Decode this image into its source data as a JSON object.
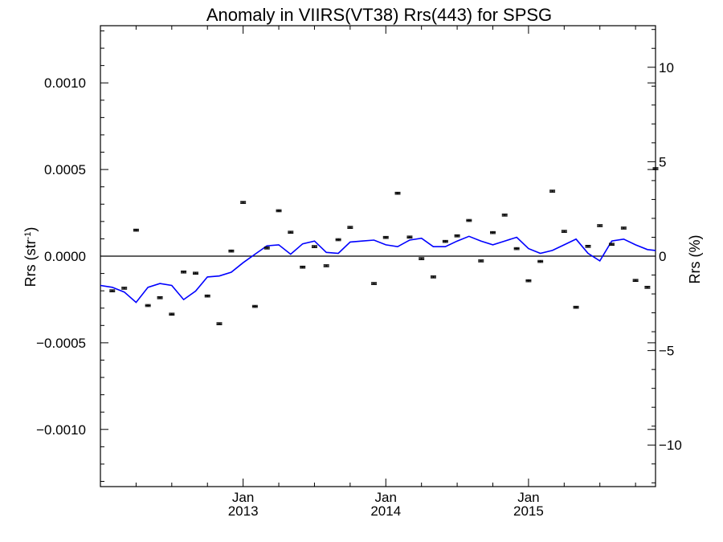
{
  "chart_data": {
    "type": "line",
    "title": "Anomaly in VIIRS(VT38) Rrs(443) for SPSG",
    "ylabel_left": {
      "base": "Rrs (str",
      "sup": "-1",
      "tail": ")"
    },
    "ylabel_right": "Rrs (%)",
    "ylim_left": [
      -0.00133,
      0.00133
    ],
    "ylim_right": [
      -12.2,
      12.2
    ],
    "x_range": [
      2012.0,
      2015.89
    ],
    "left_ticks": [
      {
        "value": 0.001,
        "label": "0.0010"
      },
      {
        "value": 0.0005,
        "label": "0.0005"
      },
      {
        "value": 0.0,
        "label": "0.0000"
      },
      {
        "value": -0.0005,
        "label": "−0.0005"
      },
      {
        "value": -0.001,
        "label": "−0.0010"
      }
    ],
    "right_ticks": [
      {
        "value": 10,
        "label": "10"
      },
      {
        "value": 5,
        "label": "5"
      },
      {
        "value": 0,
        "label": "0"
      },
      {
        "value": -5,
        "label": "−5"
      },
      {
        "value": -10,
        "label": "−10"
      }
    ],
    "x_ticks": [
      {
        "value": 2013.0,
        "month": "Jan",
        "year": "2013"
      },
      {
        "value": 2014.0,
        "month": "Jan",
        "year": "2014"
      },
      {
        "value": 2015.0,
        "month": "Jan",
        "year": "2015"
      }
    ],
    "zero_line": 0,
    "series": [
      {
        "kind": "line",
        "axis": "right",
        "color": "#0000ff",
        "x": [
          2012.0,
          2012.083,
          2012.167,
          2012.25,
          2012.333,
          2012.417,
          2012.5,
          2012.583,
          2012.667,
          2012.75,
          2012.833,
          2012.917,
          2013.0,
          2013.083,
          2013.167,
          2013.25,
          2013.333,
          2013.417,
          2013.5,
          2013.583,
          2013.667,
          2013.75,
          2013.833,
          2013.917,
          2014.0,
          2014.083,
          2014.167,
          2014.25,
          2014.333,
          2014.417,
          2014.5,
          2014.583,
          2014.667,
          2014.75,
          2014.833,
          2014.917,
          2015.0,
          2015.083,
          2015.167,
          2015.25,
          2015.333,
          2015.417,
          2015.5,
          2015.583,
          2015.667,
          2015.75,
          2015.833,
          2015.89
        ],
        "values": [
          -1.55,
          -1.65,
          -1.9,
          -2.45,
          -1.65,
          -1.45,
          -1.55,
          -2.3,
          -1.85,
          -1.1,
          -1.05,
          -0.85,
          -0.35,
          0.1,
          0.55,
          0.6,
          0.1,
          0.65,
          0.8,
          0.2,
          0.15,
          0.75,
          0.8,
          0.85,
          0.6,
          0.5,
          0.85,
          0.95,
          0.5,
          0.5,
          0.8,
          1.05,
          0.8,
          0.6,
          0.8,
          1.0,
          0.4,
          0.15,
          0.3,
          0.6,
          0.9,
          0.15,
          -0.25,
          0.8,
          0.9,
          0.6,
          0.35,
          0.3
        ]
      },
      {
        "kind": "scatter_errorbar",
        "axis": "left",
        "color": "#000000",
        "x": [
          2012.083,
          2012.167,
          2012.25,
          2012.333,
          2012.417,
          2012.5,
          2012.583,
          2012.667,
          2012.75,
          2012.833,
          2012.917,
          2013.0,
          2013.083,
          2013.167,
          2013.25,
          2013.333,
          2013.417,
          2013.5,
          2013.583,
          2013.667,
          2013.75,
          2013.917,
          2014.0,
          2014.083,
          2014.167,
          2014.25,
          2014.333,
          2014.417,
          2014.5,
          2014.583,
          2014.667,
          2014.75,
          2014.833,
          2014.917,
          2015.0,
          2015.083,
          2015.167,
          2015.25,
          2015.333,
          2015.417,
          2015.5,
          2015.583,
          2015.667,
          2015.75,
          2015.833,
          2015.89
        ],
        "values": [
          -0.0002,
          -0.000185,
          0.00015,
          -0.000285,
          -0.00024,
          -0.000335,
          -9.15e-05,
          -9.85e-05,
          -0.00023,
          -0.00039,
          2.95e-05,
          0.00031,
          -0.00029,
          4.7e-05,
          0.000262,
          0.000138,
          -6.35e-05,
          5.5e-05,
          -5.55e-05,
          9.5e-05,
          0.000166,
          -0.000158,
          0.000108,
          0.000363,
          0.00011,
          -1.45e-05,
          -0.00012,
          8.5e-05,
          0.000117,
          0.000206,
          -2.75e-05,
          0.000136,
          0.000237,
          4.35e-05,
          -0.000142,
          -3.05e-05,
          0.000375,
          0.000143,
          -0.000295,
          5.65e-05,
          0.000176,
          6.85e-05,
          0.000162,
          -0.00014,
          -0.00018,
          0.000505
        ],
        "err": 6e-06
      }
    ]
  }
}
